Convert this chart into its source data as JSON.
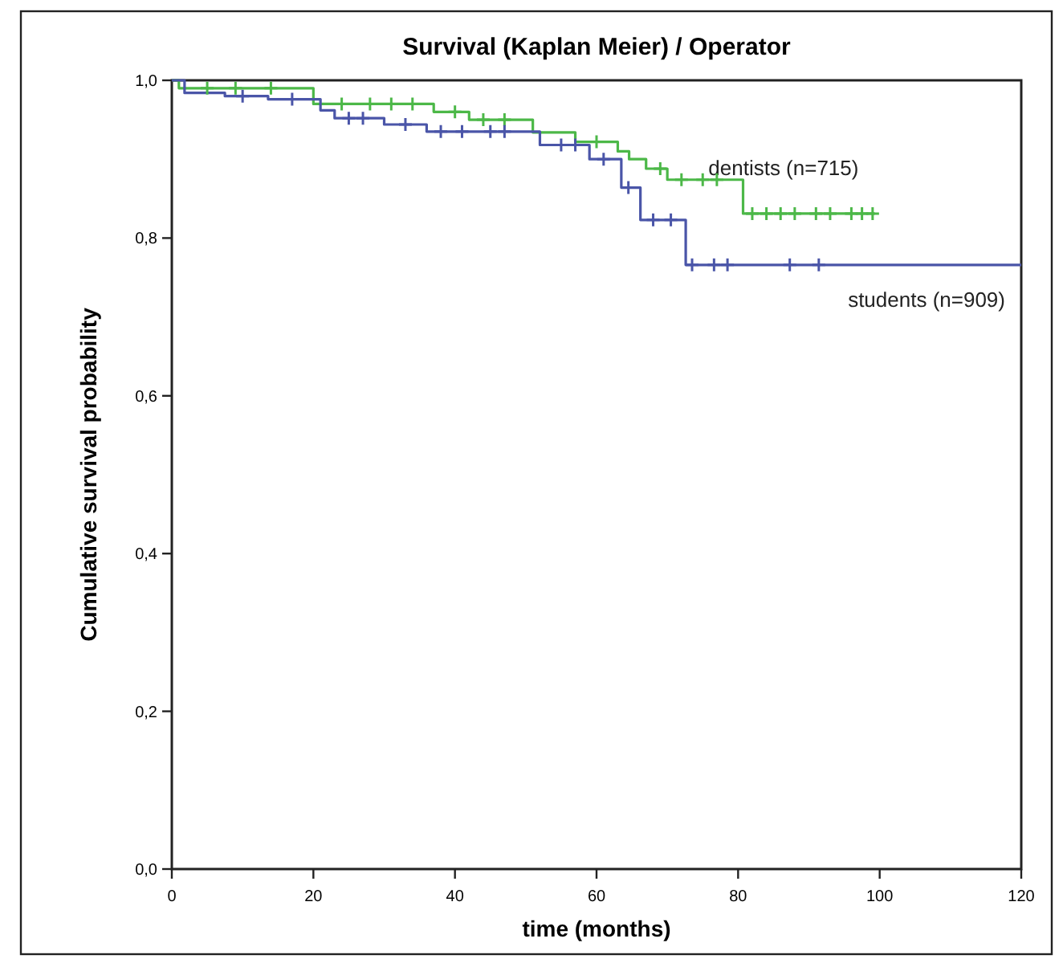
{
  "chart_data": {
    "type": "step",
    "title": "Survival (Kaplan Meier) / Operator",
    "xlabel": "time (months)",
    "ylabel": "Cumulative survival probability",
    "xlim": [
      0,
      120
    ],
    "xticks": [
      0,
      20,
      40,
      60,
      80,
      100,
      120
    ],
    "ylim": [
      0,
      1
    ],
    "yticks": [
      {
        "value": 0,
        "label": "0,0"
      },
      {
        "value": 0.2,
        "label": "0,2"
      },
      {
        "value": 0.4,
        "label": "0,4"
      },
      {
        "value": 0.6,
        "label": "0,6"
      },
      {
        "value": 0.8,
        "label": "0,8"
      },
      {
        "value": 1,
        "label": "1,0"
      }
    ],
    "grid": false,
    "marker": "none",
    "line_style": "solid",
    "series": [
      {
        "name": "dentists (n=715)",
        "color": "#4cb848",
        "x": [
          0,
          1,
          20,
          37,
          42,
          51,
          57,
          63,
          64.6,
          67,
          70,
          80.7,
          99.3
        ],
        "values": [
          1,
          0.99,
          0.97,
          0.96,
          0.95,
          0.934,
          0.922,
          0.91,
          0.9,
          0.888,
          0.874,
          0.831,
          0.831
        ]
      },
      {
        "name": "students (n=909)",
        "color": "#4a55a8",
        "x": [
          0,
          1.8,
          7.5,
          13.6,
          21,
          23,
          30,
          36,
          52,
          59,
          63.5,
          66.2,
          72.6,
          120
        ],
        "values": [
          1,
          0.984,
          0.98,
          0.976,
          0.962,
          0.952,
          0.944,
          0.935,
          0.918,
          0.9,
          0.864,
          0.823,
          0.766,
          0.766
        ]
      },
      {
        "type": "scatter",
        "marker": "cross",
        "color": "#4cb848",
        "x": [
          5,
          9,
          14,
          24,
          28,
          31,
          34,
          40,
          44,
          47,
          60,
          69,
          72,
          75,
          77,
          82,
          84,
          86,
          88,
          91,
          93,
          96,
          97.5,
          99
        ],
        "values": [
          0.99,
          0.99,
          0.99,
          0.97,
          0.97,
          0.97,
          0.97,
          0.96,
          0.95,
          0.95,
          0.922,
          0.888,
          0.874,
          0.874,
          0.874,
          0.831,
          0.831,
          0.831,
          0.831,
          0.831,
          0.831,
          0.831,
          0.831,
          0.831
        ]
      },
      {
        "type": "scatter",
        "marker": "cross",
        "color": "#4a55a8",
        "x": [
          10,
          17,
          25,
          27,
          33,
          38,
          41,
          45,
          47,
          55,
          57,
          61,
          64.5,
          68,
          70.5,
          73.5,
          76.6,
          78.5,
          87.3,
          91.4
        ],
        "values": [
          0.98,
          0.976,
          0.952,
          0.952,
          0.944,
          0.935,
          0.935,
          0.935,
          0.935,
          0.918,
          0.918,
          0.9,
          0.864,
          0.823,
          0.823,
          0.766,
          0.766,
          0.766,
          0.766,
          0.766
        ]
      }
    ]
  }
}
